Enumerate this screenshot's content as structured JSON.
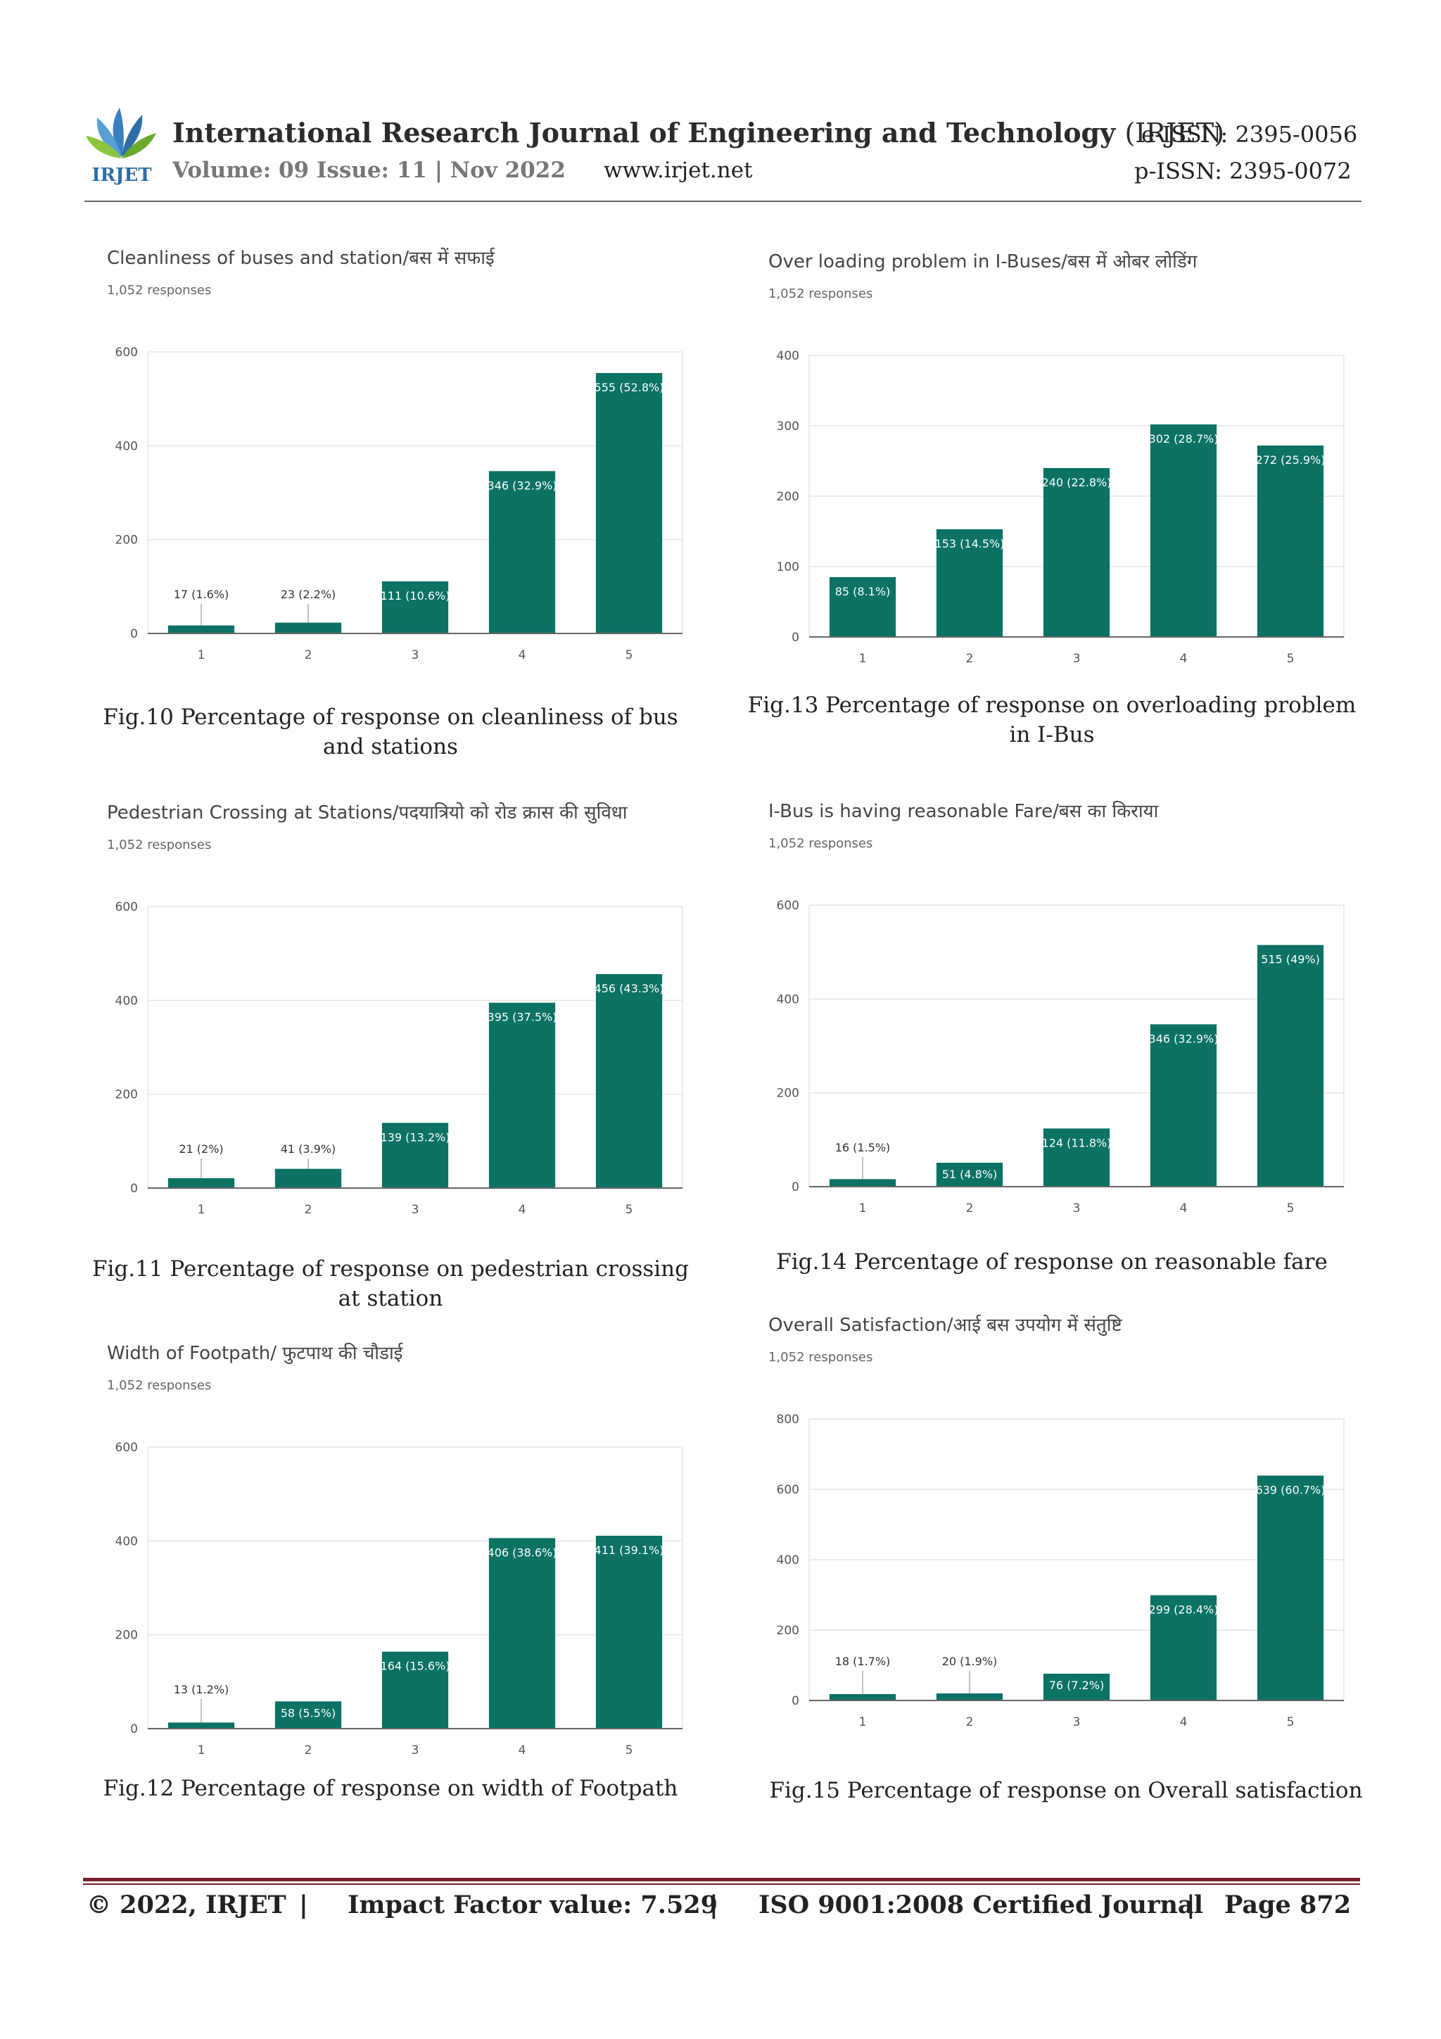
{
  "header": {
    "journal_title": "International Research Journal of Engineering and Technology",
    "journal_abbr": "(IRJET)",
    "eissn": "e-ISSN: 2395-0056",
    "volume": "Volume: 09 Issue: 11 | Nov 2022",
    "website": "www.irjet.net",
    "pissn": "p-ISSN: 2395-0072",
    "logo_text": "IRJET"
  },
  "colors": {
    "bar": "#0b7264",
    "text": "#222222",
    "axis": "#666666",
    "grid": "#e6e6e6",
    "footer_rule": "#7a1f2b"
  },
  "chart_data": [
    {
      "id": "fig10",
      "type": "bar",
      "title": "Cleanliness of buses and station/बस में सफाई",
      "subtitle": "1,052 responses",
      "categories": [
        "1",
        "2",
        "3",
        "4",
        "5"
      ],
      "values": [
        17,
        23,
        111,
        346,
        555
      ],
      "labels": [
        "17 (1.6%)",
        "23 (2.2%)",
        "111 (10.6%)",
        "346 (32.9%)",
        "555 (52.8%)"
      ],
      "yticks": [
        0,
        200,
        400,
        600
      ],
      "ylim": [
        0,
        600
      ]
    },
    {
      "id": "fig13",
      "type": "bar",
      "title": "Over loading problem in I-Buses/बस में ओबर लोडिंग",
      "subtitle": "1,052 responses",
      "categories": [
        "1",
        "2",
        "3",
        "4",
        "5"
      ],
      "values": [
        85,
        153,
        240,
        302,
        272
      ],
      "labels": [
        "85 (8.1%)",
        "153 (14.5%)",
        "240 (22.8%)",
        "302 (28.7%)",
        "272 (25.9%)"
      ],
      "yticks": [
        0,
        100,
        200,
        300,
        400
      ],
      "ylim": [
        0,
        400
      ]
    },
    {
      "id": "fig11",
      "type": "bar",
      "title": "Pedestrian Crossing at Stations/पदयात्रियो को रोड क्रास की सुविधा",
      "subtitle": "1,052 responses",
      "categories": [
        "1",
        "2",
        "3",
        "4",
        "5"
      ],
      "values": [
        21,
        41,
        139,
        395,
        456
      ],
      "labels": [
        "21 (2%)",
        "41 (3.9%)",
        "139 (13.2%)",
        "395 (37.5%)",
        "456 (43.3%)"
      ],
      "yticks": [
        0,
        200,
        400,
        600
      ],
      "ylim": [
        0,
        600
      ]
    },
    {
      "id": "fig14",
      "type": "bar",
      "title": "I-Bus is having reasonable Fare/बस का किराया",
      "subtitle": "1,052 responses",
      "categories": [
        "1",
        "2",
        "3",
        "4",
        "5"
      ],
      "values": [
        16,
        51,
        124,
        346,
        515
      ],
      "labels": [
        "16 (1.5%)",
        "51 (4.8%)",
        "124 (11.8%)",
        "346 (32.9%)",
        "515 (49%)"
      ],
      "yticks": [
        0,
        200,
        400,
        600
      ],
      "ylim": [
        0,
        600
      ]
    },
    {
      "id": "fig12",
      "type": "bar",
      "title": "Width of Footpath/ फुटपाथ की चौडाई",
      "subtitle": "1,052 responses",
      "categories": [
        "1",
        "2",
        "3",
        "4",
        "5"
      ],
      "values": [
        13,
        58,
        164,
        406,
        411
      ],
      "labels": [
        "13 (1.2%)",
        "58 (5.5%)",
        "164 (15.6%)",
        "406 (38.6%)",
        "411 (39.1%)"
      ],
      "yticks": [
        0,
        200,
        400,
        600
      ],
      "ylim": [
        0,
        600
      ]
    },
    {
      "id": "fig15",
      "type": "bar",
      "title": "Overall Satisfaction/आई बस उपयोग में संतुष्टि",
      "subtitle": "1,052 responses",
      "categories": [
        "1",
        "2",
        "3",
        "4",
        "5"
      ],
      "values": [
        18,
        20,
        76,
        299,
        639
      ],
      "labels": [
        "18 (1.7%)",
        "20 (1.9%)",
        "76 (7.2%)",
        "299 (28.4%)",
        "639 (60.7%)"
      ],
      "yticks": [
        0,
        200,
        400,
        600,
        800
      ],
      "ylim": [
        0,
        800
      ]
    }
  ],
  "captions": {
    "fig10": "Fig.10 Percentage of response on cleanliness of bus and stations",
    "fig13": "Fig.13 Percentage of response on overloading problem in I-Bus",
    "fig11": "Fig.11 Percentage of response on pedestrian crossing at station",
    "fig14": "Fig.14 Percentage of response on reasonable fare",
    "fig12": "Fig.12 Percentage of response on width of Footpath",
    "fig15": "Fig.15 Percentage of response on Overall satisfaction"
  },
  "footer": {
    "copyright": "© 2022, IRJET",
    "sep": "|",
    "impact": "Impact Factor value: 7.529",
    "iso": "ISO 9001:2008 Certified Journal",
    "page": "Page 872"
  }
}
